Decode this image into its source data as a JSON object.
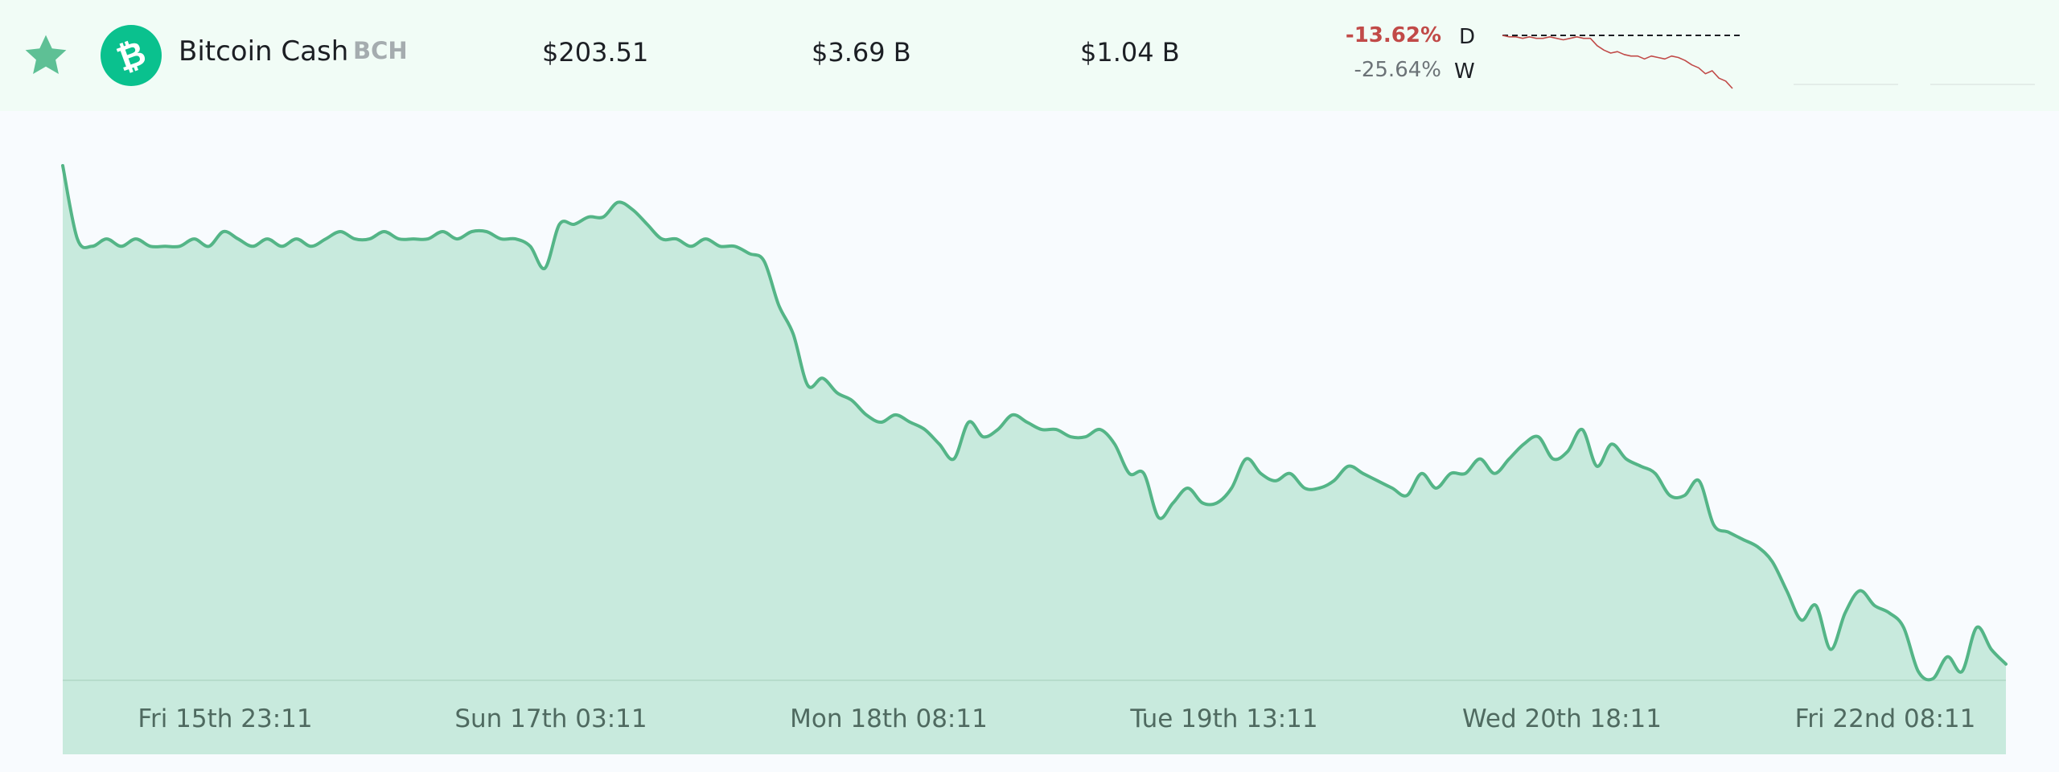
{
  "coin": {
    "name": "Bitcoin Cash",
    "symbol": "BCH",
    "price": "$203.51",
    "market_cap": "$3.69 B",
    "volume": "$1.04 B",
    "change_day": "-13.62%",
    "change_day_label": "D",
    "change_week": "-25.64%",
    "change_week_label": "W",
    "logo_glyph": "₿",
    "star_icon": "star-icon",
    "colors": {
      "brand": "#0ac18e",
      "negative": "#c14a48",
      "star": "#5ec095",
      "chart_line": "#54b587",
      "chart_fill": "#c8eadd"
    }
  },
  "chart_data": {
    "type": "area",
    "x_ticks": [
      "Fri 15th 23:11",
      "Sun 17th 03:11",
      "Mon 18th 08:11",
      "Tue 19th 13:11",
      "Wed 20th 18:11",
      "Fri 22nd 08:11"
    ],
    "values": [
      272,
      262,
      261,
      262,
      261,
      262,
      261,
      261,
      261,
      262,
      261,
      263,
      262,
      261,
      262,
      261,
      262,
      261,
      262,
      263,
      262,
      262,
      263,
      262,
      262,
      262,
      263,
      262,
      263,
      263,
      262,
      262,
      261,
      258,
      264,
      264,
      265,
      265,
      267,
      266,
      264,
      262,
      262,
      261,
      262,
      261,
      261,
      260,
      259,
      253,
      249,
      242,
      243,
      241,
      240,
      238,
      237,
      238,
      237,
      236,
      234,
      232,
      237,
      235,
      236,
      238,
      237,
      236,
      236,
      235,
      235,
      236,
      234,
      230,
      230,
      224,
      226,
      228,
      226,
      226,
      228,
      232,
      230,
      229,
      230,
      228,
      228,
      229,
      231,
      230,
      229,
      228,
      227,
      230,
      228,
      230,
      230,
      232,
      230,
      232,
      234,
      235,
      232,
      233,
      236,
      231,
      234,
      232,
      231,
      230,
      227,
      227,
      229,
      223,
      222,
      221,
      220,
      218,
      214,
      210,
      212,
      206,
      211,
      214,
      212,
      211,
      209,
      203,
      202,
      205,
      203,
      209,
      206,
      204
    ],
    "y_min": 202,
    "y_max": 272
  },
  "sparkline": {
    "values": [
      272,
      271,
      271,
      270,
      271,
      270,
      270,
      271,
      270,
      269,
      270,
      271,
      270,
      270,
      265,
      262,
      260,
      261,
      259,
      258,
      258,
      256,
      258,
      257,
      256,
      258,
      257,
      255,
      252,
      250,
      246,
      248,
      243,
      241,
      236
    ],
    "baseline": 272
  }
}
